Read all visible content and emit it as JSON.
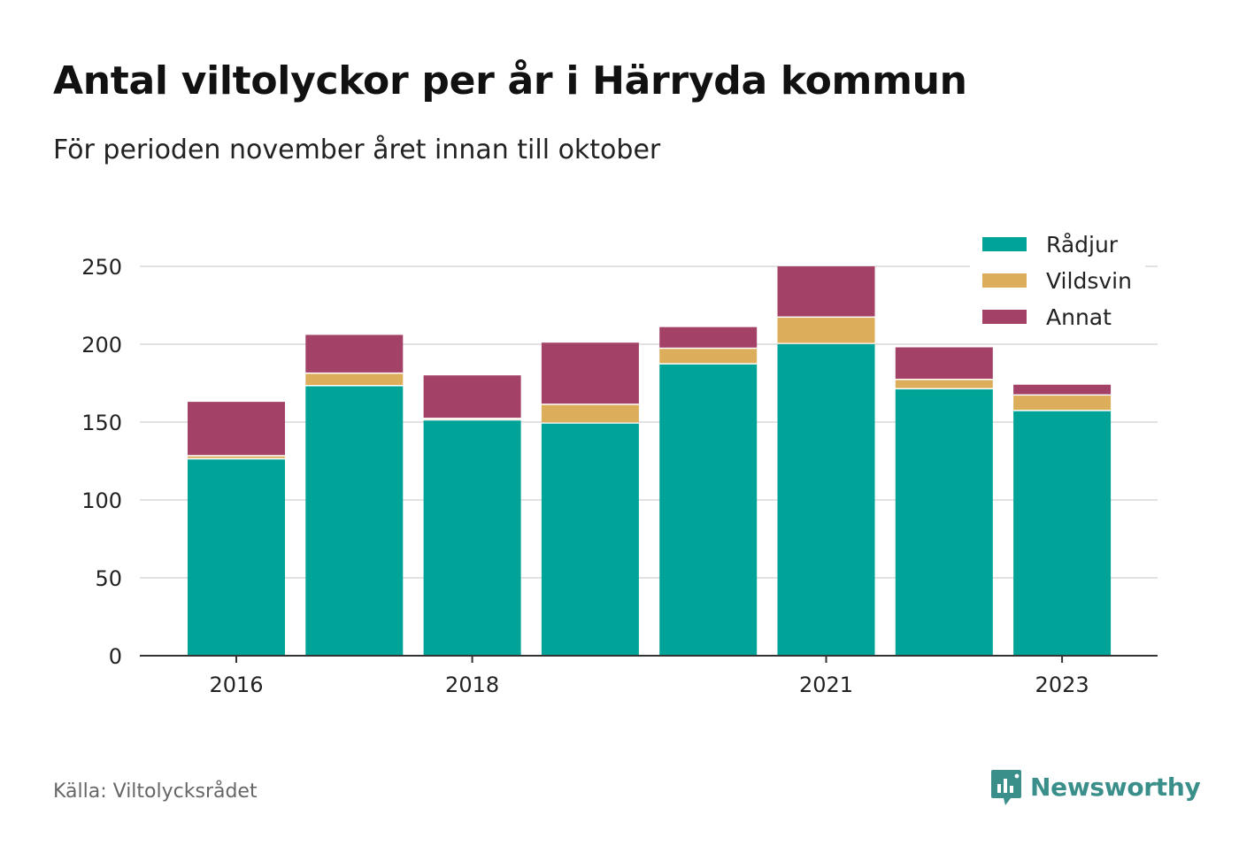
{
  "header": {
    "title": "Antal viltolyckor per år i Härryda kommun",
    "subtitle": "För perioden november året innan till oktober"
  },
  "footer": {
    "source": "Källa: Viltolycksrådet",
    "brand": "Newsworthy",
    "brand_icon": "newsworthy-logo-icon"
  },
  "colors": {
    "Rådjur": "#00a398",
    "Vildsvin": "#dcad5b",
    "Annat": "#a34166",
    "grid": "#d9d9d9",
    "axis": "#333333",
    "brand": "#3b8f8a"
  },
  "chart_data": {
    "type": "bar",
    "stacked": true,
    "categories": [
      "2016",
      "2017",
      "2018",
      "2019",
      "2020",
      "2021",
      "2022",
      "2023"
    ],
    "tick_labels": [
      "2016",
      "",
      "2018",
      "",
      "",
      "2021",
      "",
      "2023"
    ],
    "series": [
      {
        "name": "Rådjur",
        "values": [
          126,
          173,
          151,
          149,
          187,
          200,
          171,
          157
        ]
      },
      {
        "name": "Vildsvin",
        "values": [
          2,
          8,
          1,
          12,
          10,
          17,
          6,
          10
        ]
      },
      {
        "name": "Annat",
        "values": [
          35,
          25,
          28,
          40,
          14,
          33,
          21,
          7
        ]
      }
    ],
    "ylim": [
      0,
      250
    ],
    "yticks": [
      0,
      50,
      100,
      150,
      200,
      250
    ],
    "grid": true,
    "legend": "top-right"
  }
}
